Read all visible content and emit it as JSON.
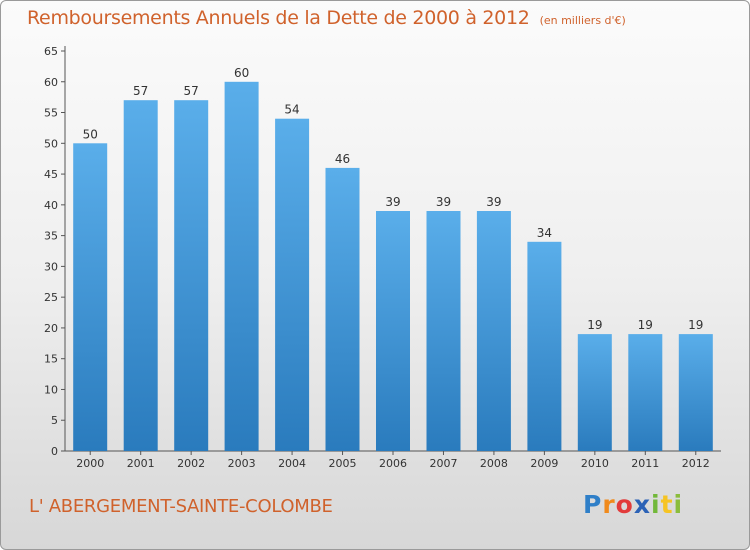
{
  "header": {
    "title": "Remboursements Annuels de la Dette de 2000 à 2012",
    "unit": "(en milliers d'€)"
  },
  "footer": {
    "commune": "L' ABERGEMENT-SAINTE-COLOMBE",
    "logo": [
      "P",
      "r",
      "o",
      "x",
      "i",
      "t",
      "i"
    ]
  },
  "chart_data": {
    "type": "bar",
    "title": "Remboursements Annuels de la Dette de 2000 à 2012",
    "unit": "(en milliers d'€)",
    "xlabel": "",
    "ylabel": "",
    "categories": [
      "2000",
      "2001",
      "2002",
      "2003",
      "2004",
      "2005",
      "2006",
      "2007",
      "2008",
      "2009",
      "2010",
      "2011",
      "2012"
    ],
    "values": [
      50,
      57,
      57,
      60,
      54,
      46,
      39,
      39,
      39,
      34,
      19,
      19,
      19
    ],
    "ylim": [
      0,
      65
    ],
    "yticks": [
      0,
      5,
      10,
      15,
      20,
      25,
      30,
      35,
      40,
      45,
      50,
      55,
      60,
      65
    ],
    "grid": false,
    "colors": {
      "bar_top": "#5aaeea",
      "bar_bottom": "#2a7bbd",
      "axis": "#555555",
      "text": "#333333",
      "accent": "#d0622c"
    }
  }
}
